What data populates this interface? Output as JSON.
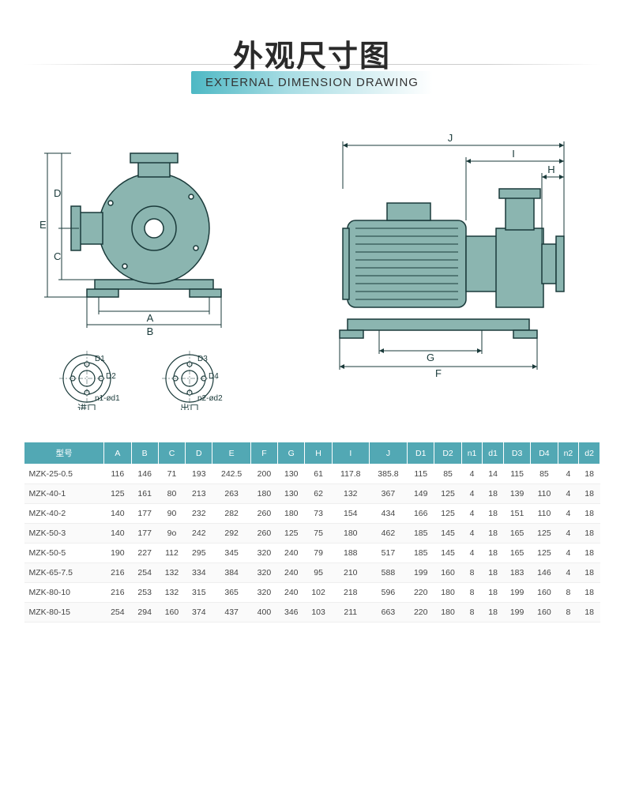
{
  "title": {
    "cn": "外观尺寸图",
    "en": "EXTERNAL DIMENSION DRAWING"
  },
  "diagram": {
    "pump_fill": "#8bb5b0",
    "pump_stroke": "#1a3a3a",
    "dim_stroke": "#1a3a3a",
    "labels": {
      "A": "A",
      "B": "B",
      "C": "C",
      "D": "D",
      "E": "E",
      "F": "F",
      "G": "G",
      "H": "H",
      "I": "I",
      "J": "J",
      "D1": "D1",
      "D2": "D2",
      "D3": "D3",
      "D4": "D4",
      "n1d1": "n1-ød1",
      "n2d2": "n2-ød2",
      "inlet": "进口",
      "outlet": "出口"
    }
  },
  "table": {
    "header_bg": "#52a8b4",
    "header_color": "#ffffff",
    "columns": [
      "型号",
      "A",
      "B",
      "C",
      "D",
      "E",
      "F",
      "G",
      "H",
      "I",
      "J",
      "D1",
      "D2",
      "n1",
      "d1",
      "D3",
      "D4",
      "n2",
      "d2"
    ],
    "rows": [
      [
        "MZK-25-0.5",
        "116",
        "146",
        "71",
        "193",
        "242.5",
        "200",
        "130",
        "61",
        "117.8",
        "385.8",
        "115",
        "85",
        "4",
        "14",
        "115",
        "85",
        "4",
        "18"
      ],
      [
        "MZK-40-1",
        "125",
        "161",
        "80",
        "213",
        "263",
        "180",
        "130",
        "62",
        "132",
        "367",
        "149",
        "125",
        "4",
        "18",
        "139",
        "110",
        "4",
        "18"
      ],
      [
        "MZK-40-2",
        "140",
        "177",
        "90",
        "232",
        "282",
        "260",
        "180",
        "73",
        "154",
        "434",
        "166",
        "125",
        "4",
        "18",
        "151",
        "110",
        "4",
        "18"
      ],
      [
        "MZK-50-3",
        "140",
        "177",
        "9o",
        "242",
        "292",
        "260",
        "125",
        "75",
        "180",
        "462",
        "185",
        "145",
        "4",
        "18",
        "165",
        "125",
        "4",
        "18"
      ],
      [
        "MZK-50-5",
        "190",
        "227",
        "112",
        "295",
        "345",
        "320",
        "240",
        "79",
        "188",
        "517",
        "185",
        "145",
        "4",
        "18",
        "165",
        "125",
        "4",
        "18"
      ],
      [
        "MZK-65-7.5",
        "216",
        "254",
        "132",
        "334",
        "384",
        "320",
        "240",
        "95",
        "210",
        "588",
        "199",
        "160",
        "8",
        "18",
        "183",
        "146",
        "4",
        "18"
      ],
      [
        "MZK-80-10",
        "216",
        "253",
        "132",
        "315",
        "365",
        "320",
        "240",
        "102",
        "218",
        "596",
        "220",
        "180",
        "8",
        "18",
        "199",
        "160",
        "8",
        "18"
      ],
      [
        "MZK-80-15",
        "254",
        "294",
        "160",
        "374",
        "437",
        "400",
        "346",
        "103",
        "211",
        "663",
        "220",
        "180",
        "8",
        "18",
        "199",
        "160",
        "8",
        "18"
      ]
    ]
  }
}
